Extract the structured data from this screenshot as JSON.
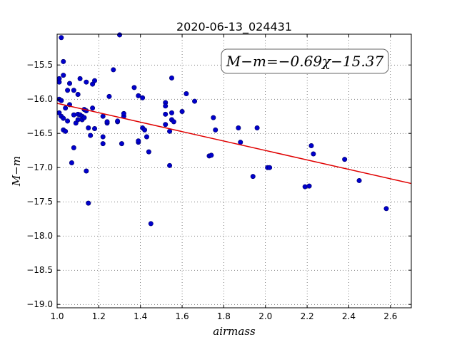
{
  "chart_data": {
    "type": "scatter",
    "title": "2020-06-13_024431",
    "xlabel": "airmass",
    "ylabel": "M−m",
    "annotation": "M−m=−0.69χ−15.37",
    "xlim": [
      1.0,
      2.7
    ],
    "ylim": [
      -19.05,
      -15.05
    ],
    "y_inverted": true,
    "x_ticks": [
      1.0,
      1.2,
      1.4,
      1.6,
      1.8,
      2.0,
      2.2,
      2.4,
      2.6
    ],
    "x_tick_labels": [
      "1.0",
      "1.2",
      "1.4",
      "1.6",
      "1.8",
      "2.0",
      "2.2",
      "2.4",
      "2.6"
    ],
    "y_ticks": [
      -15.5,
      -16.0,
      -16.5,
      -17.0,
      -17.5,
      -18.0,
      -18.5,
      -19.0
    ],
    "y_tick_labels": [
      "−15.5",
      "−16.0",
      "−16.5",
      "−17.0",
      "−17.5",
      "−18.0",
      "−18.5",
      "−19.0"
    ],
    "grid": true,
    "fit": {
      "slope": -0.69,
      "intercept": -15.37,
      "color": "#e00000"
    },
    "point_color": "#0000cc",
    "points": [
      [
        1.01,
        -15.7
      ],
      [
        1.01,
        -15.75
      ],
      [
        1.01,
        -16.0
      ],
      [
        1.01,
        -16.2
      ],
      [
        1.02,
        -15.1
      ],
      [
        1.02,
        -16.02
      ],
      [
        1.02,
        -16.25
      ],
      [
        1.03,
        -15.45
      ],
      [
        1.03,
        -15.65
      ],
      [
        1.03,
        -16.28
      ],
      [
        1.03,
        -16.45
      ],
      [
        1.04,
        -16.13
      ],
      [
        1.04,
        -16.47
      ],
      [
        1.05,
        -15.87
      ],
      [
        1.05,
        -16.32
      ],
      [
        1.06,
        -15.77
      ],
      [
        1.06,
        -16.08
      ],
      [
        1.07,
        -16.93
      ],
      [
        1.08,
        -15.87
      ],
      [
        1.08,
        -16.23
      ],
      [
        1.08,
        -16.71
      ],
      [
        1.09,
        -16.35
      ],
      [
        1.1,
        -15.93
      ],
      [
        1.1,
        -16.22
      ],
      [
        1.1,
        -16.3
      ],
      [
        1.11,
        -15.7
      ],
      [
        1.11,
        -16.23
      ],
      [
        1.12,
        -16.25
      ],
      [
        1.12,
        -16.3
      ],
      [
        1.13,
        -16.15
      ],
      [
        1.13,
        -16.27
      ],
      [
        1.14,
        -15.75
      ],
      [
        1.14,
        -16.17
      ],
      [
        1.14,
        -17.05
      ],
      [
        1.15,
        -16.42
      ],
      [
        1.15,
        -17.52
      ],
      [
        1.16,
        -16.53
      ],
      [
        1.17,
        -15.78
      ],
      [
        1.17,
        -16.13
      ],
      [
        1.18,
        -15.73
      ],
      [
        1.18,
        -16.43
      ],
      [
        1.22,
        -16.25
      ],
      [
        1.22,
        -16.55
      ],
      [
        1.22,
        -16.65
      ],
      [
        1.24,
        -16.35
      ],
      [
        1.24,
        -16.33
      ],
      [
        1.25,
        -15.96
      ],
      [
        1.27,
        -15.57
      ],
      [
        1.29,
        -16.33
      ],
      [
        1.29,
        -16.32
      ],
      [
        1.3,
        -15.06
      ],
      [
        1.31,
        -16.65
      ],
      [
        1.32,
        -16.25
      ],
      [
        1.32,
        -16.21
      ],
      [
        1.37,
        -15.83
      ],
      [
        1.39,
        -15.95
      ],
      [
        1.39,
        -16.63
      ],
      [
        1.39,
        -16.61
      ],
      [
        1.41,
        -15.98
      ],
      [
        1.41,
        -16.42
      ],
      [
        1.42,
        -16.45
      ],
      [
        1.43,
        -16.55
      ],
      [
        1.44,
        -16.77
      ],
      [
        1.45,
        -17.82
      ],
      [
        1.52,
        -16.05
      ],
      [
        1.52,
        -16.1
      ],
      [
        1.52,
        -16.22
      ],
      [
        1.52,
        -16.37
      ],
      [
        1.54,
        -16.47
      ],
      [
        1.54,
        -16.97
      ],
      [
        1.55,
        -15.69
      ],
      [
        1.55,
        -16.2
      ],
      [
        1.55,
        -16.3
      ],
      [
        1.56,
        -16.33
      ],
      [
        1.6,
        -16.18
      ],
      [
        1.62,
        -15.92
      ],
      [
        1.66,
        -16.03
      ],
      [
        1.73,
        -16.83
      ],
      [
        1.74,
        -16.82
      ],
      [
        1.75,
        -16.27
      ],
      [
        1.76,
        -16.45
      ],
      [
        1.87,
        -16.42
      ],
      [
        1.88,
        -16.63
      ],
      [
        1.94,
        -17.13
      ],
      [
        1.96,
        -16.42
      ],
      [
        2.01,
        -17.0
      ],
      [
        2.02,
        -17.0
      ],
      [
        2.19,
        -17.28
      ],
      [
        2.21,
        -17.27
      ],
      [
        2.22,
        -16.68
      ],
      [
        2.23,
        -16.8
      ],
      [
        2.38,
        -16.88
      ],
      [
        2.45,
        -17.19
      ],
      [
        2.58,
        -17.6
      ]
    ]
  }
}
